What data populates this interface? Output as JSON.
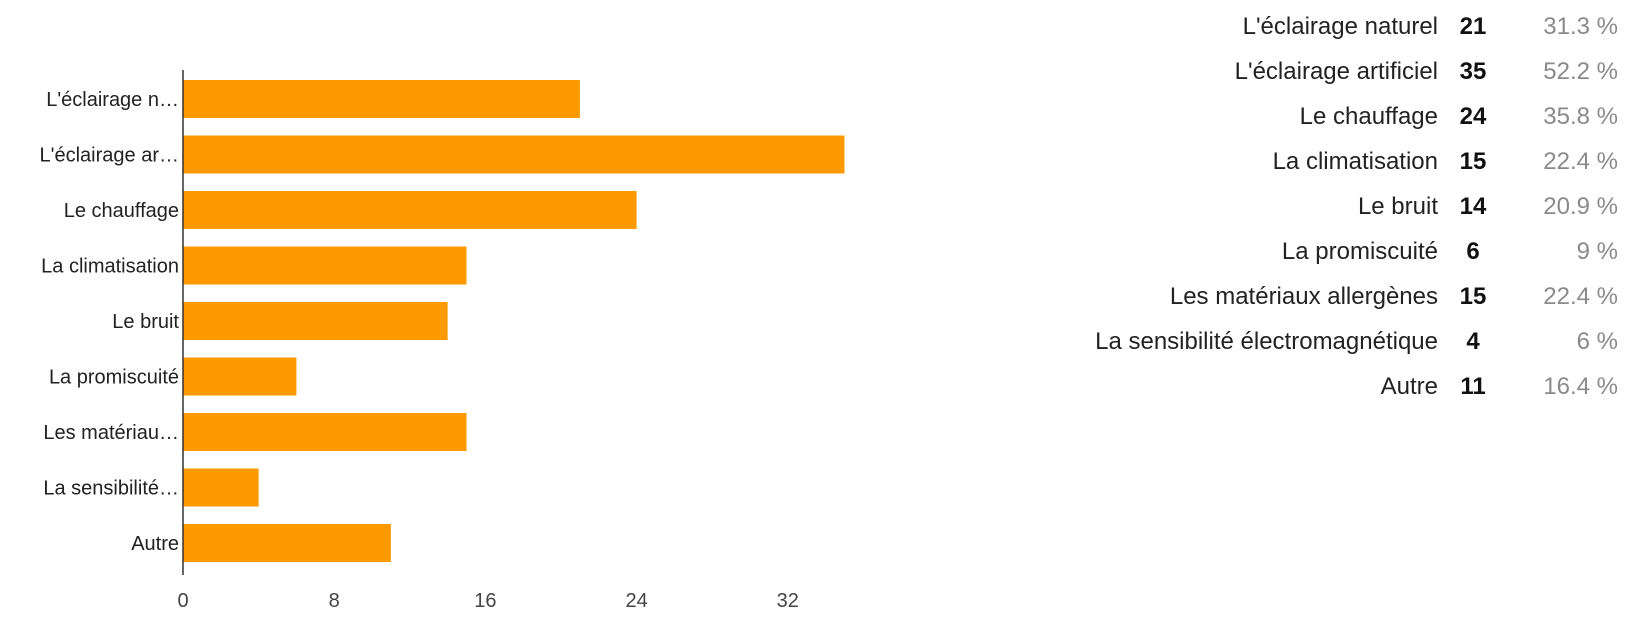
{
  "colors": {
    "bar": "#ff9900",
    "axis": "#333333",
    "text": "#222222",
    "percent": "#8a8a8a"
  },
  "chart_data": {
    "type": "bar",
    "orientation": "horizontal",
    "categories": [
      "L'éclairage naturel",
      "L'éclairage artificiel",
      "Le chauffage",
      "La climatisation",
      "Le bruit",
      "La promiscuité",
      "Les matériaux allergènes",
      "La sensibilité électromagnétique",
      "Autre"
    ],
    "category_display_labels": [
      "L'éclairage n…",
      "L'éclairage ar…",
      "Le chauffage",
      "La climatisation",
      "Le bruit",
      "La promiscuité",
      "Les matériau…",
      "La sensibilité…",
      "Autre"
    ],
    "values": [
      21,
      35,
      24,
      15,
      14,
      6,
      15,
      4,
      11
    ],
    "percentages": [
      "31.3 %",
      "52.2 %",
      "35.8 %",
      "22.4 %",
      "20.9 %",
      "9 %",
      "22.4 %",
      "6 %",
      "16.4 %"
    ],
    "x_ticks": [
      0,
      8,
      16,
      24,
      32
    ],
    "xlim": [
      0,
      35.5
    ],
    "title": "",
    "xlabel": "",
    "ylabel": "",
    "grid": false,
    "legend": "none"
  }
}
